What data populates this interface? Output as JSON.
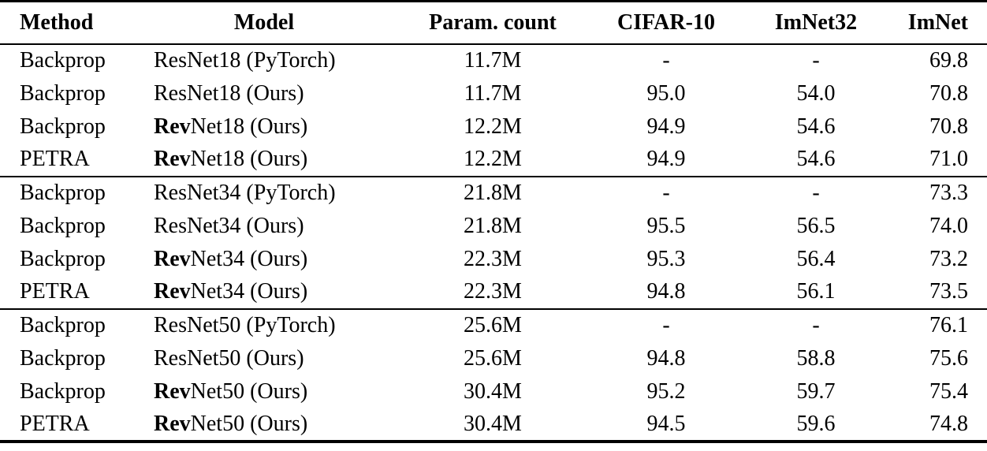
{
  "page": {
    "background_color": "#ffffff",
    "text_color": "#000000",
    "rule_color": "#000000"
  },
  "table": {
    "columns": [
      {
        "key": "method",
        "label": "Method"
      },
      {
        "key": "model",
        "label": "Model"
      },
      {
        "key": "params",
        "label": "Param. count"
      },
      {
        "key": "cifar10",
        "label": "CIFAR-10"
      },
      {
        "key": "imnet32",
        "label": "ImNet32"
      },
      {
        "key": "imnet",
        "label": "ImNet"
      }
    ],
    "groups": [
      {
        "rows": [
          {
            "method": "Backprop",
            "model_bold": "",
            "model_rest": "ResNet18 (PyTorch)",
            "params": "11.7M",
            "cifar10": "-",
            "imnet32": "-",
            "imnet": "69.8"
          },
          {
            "method": "Backprop",
            "model_bold": "",
            "model_rest": "ResNet18 (Ours)",
            "params": "11.7M",
            "cifar10": "95.0",
            "imnet32": "54.0",
            "imnet": "70.8"
          },
          {
            "method": "Backprop",
            "model_bold": "Rev",
            "model_rest": "Net18 (Ours)",
            "params": "12.2M",
            "cifar10": "94.9",
            "imnet32": "54.6",
            "imnet": "70.8"
          },
          {
            "method": "PETRA",
            "model_bold": "Rev",
            "model_rest": "Net18 (Ours)",
            "params": "12.2M",
            "cifar10": "94.9",
            "imnet32": "54.6",
            "imnet": "71.0"
          }
        ]
      },
      {
        "rows": [
          {
            "method": "Backprop",
            "model_bold": "",
            "model_rest": "ResNet34 (PyTorch)",
            "params": "21.8M",
            "cifar10": "-",
            "imnet32": "-",
            "imnet": "73.3"
          },
          {
            "method": "Backprop",
            "model_bold": "",
            "model_rest": "ResNet34 (Ours)",
            "params": "21.8M",
            "cifar10": "95.5",
            "imnet32": "56.5",
            "imnet": "74.0"
          },
          {
            "method": "Backprop",
            "model_bold": "Rev",
            "model_rest": "Net34 (Ours)",
            "params": "22.3M",
            "cifar10": "95.3",
            "imnet32": "56.4",
            "imnet": "73.2"
          },
          {
            "method": "PETRA",
            "model_bold": "Rev",
            "model_rest": "Net34 (Ours)",
            "params": "22.3M",
            "cifar10": "94.8",
            "imnet32": "56.1",
            "imnet": "73.5"
          }
        ]
      },
      {
        "rows": [
          {
            "method": "Backprop",
            "model_bold": "",
            "model_rest": "ResNet50 (PyTorch)",
            "params": "25.6M",
            "cifar10": "-",
            "imnet32": "-",
            "imnet": "76.1"
          },
          {
            "method": "Backprop",
            "model_bold": "",
            "model_rest": "ResNet50 (Ours)",
            "params": "25.6M",
            "cifar10": "94.8",
            "imnet32": "58.8",
            "imnet": "75.6"
          },
          {
            "method": "Backprop",
            "model_bold": "Rev",
            "model_rest": "Net50 (Ours)",
            "params": "30.4M",
            "cifar10": "95.2",
            "imnet32": "59.7",
            "imnet": "75.4"
          },
          {
            "method": "PETRA",
            "model_bold": "Rev",
            "model_rest": "Net50 (Ours)",
            "params": "30.4M",
            "cifar10": "94.5",
            "imnet32": "59.6",
            "imnet": "74.8"
          }
        ]
      }
    ]
  }
}
